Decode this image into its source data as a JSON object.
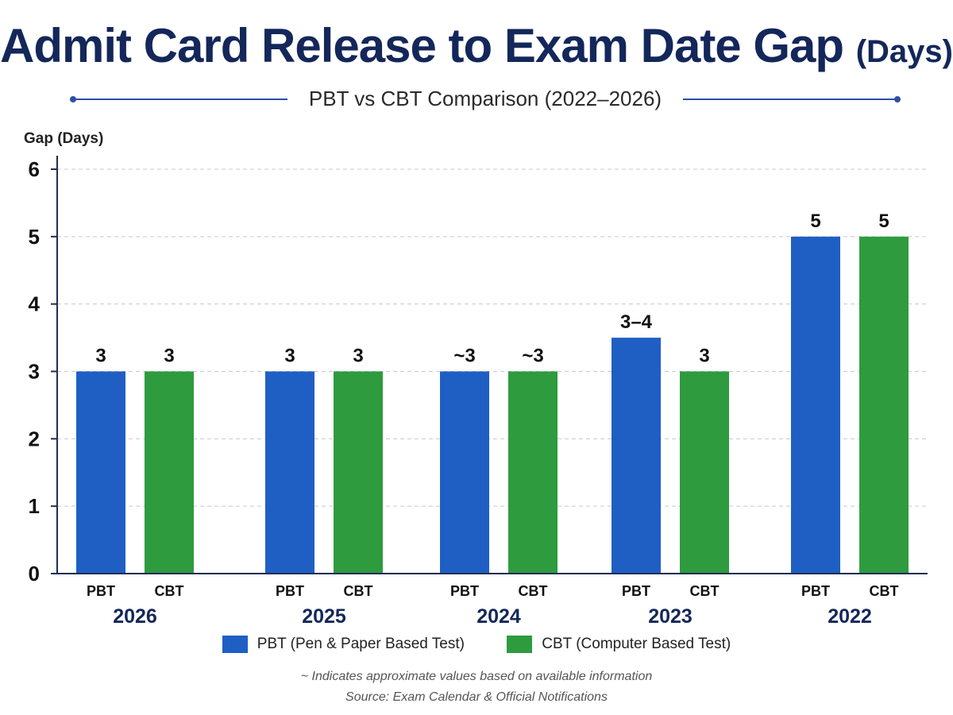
{
  "title": "Admit Card Release to Exam Date Gap",
  "title_suffix": "(Days)",
  "subtitle": "PBT vs CBT Comparison (2022–2026)",
  "footnote": "~ Indicates approximate values based on available information",
  "source": "Source: Exam Calendar & Official Notifications",
  "legend": [
    {
      "label": "PBT (Pen & Paper Based Test)",
      "color": "#1f5fc4"
    },
    {
      "label": "CBT (Computer Based Test)",
      "color": "#2e9b3e"
    }
  ],
  "chart_data": {
    "type": "bar",
    "categories": [
      "2026",
      "2025",
      "2024",
      "2023",
      "2022"
    ],
    "sub_labels": [
      "PBT",
      "CBT"
    ],
    "ylabel": "Gap (Days)",
    "xlabel": "",
    "ylim": [
      0,
      6
    ],
    "yticks": [
      0,
      1,
      2,
      3,
      4,
      5,
      6
    ],
    "grid": true,
    "legend_position": "bottom",
    "series": [
      {
        "name": "PBT",
        "color": "#1f5fc4",
        "values": [
          3,
          3,
          3,
          3.5,
          5
        ],
        "labels": [
          "3",
          "3",
          "~3",
          "3–4",
          "5"
        ]
      },
      {
        "name": "CBT",
        "color": "#2e9b3e",
        "values": [
          3,
          3,
          3,
          3,
          5
        ],
        "labels": [
          "3",
          "3",
          "~3",
          "3",
          "5"
        ]
      }
    ]
  }
}
